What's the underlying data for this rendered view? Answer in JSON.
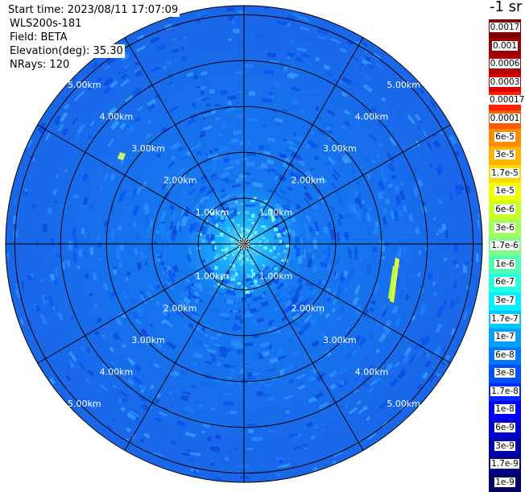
{
  "info": {
    "start_time": "Start time: 2023/08/11 17:07:09",
    "device": "WLS200s-181",
    "field": "Field: BETA",
    "elevation": "Elevation(deg): 35.30",
    "nrays": "NRays: 120"
  },
  "colorbar": {
    "title": "-1 sr",
    "labels": [
      "0.0017",
      "0.001",
      "0.0006",
      "0.0003",
      "0.00017",
      "0.0001",
      "6e-5",
      "3e-5",
      "1.7e-5",
      "1e-5",
      "6e-6",
      "3e-6",
      "1.7e-6",
      "1e-6",
      "6e-7",
      "3e-7",
      "1.7e-7",
      "1e-7",
      "6e-8",
      "3e-8",
      "1.7e-8",
      "1e-8",
      "6e-9",
      "3e-9",
      "1.7e-9",
      "1e-9"
    ],
    "colors": [
      "#800000",
      "#9a0000",
      "#b50000",
      "#d40000",
      "#ff2000",
      "#ff5a00",
      "#ff8c00",
      "#ffb400",
      "#ffdc00",
      "#f0ff00",
      "#c8ff28",
      "#a0ff5a",
      "#78ff8c",
      "#50ffb4",
      "#28ffdc",
      "#00f0ff",
      "#00c8ff",
      "#00a0ff",
      "#0078ff",
      "#0050ff",
      "#0028ff",
      "#0000ff",
      "#0000d2",
      "#0000aa",
      "#000082",
      "#000064"
    ]
  },
  "chart_data": {
    "type": "polar",
    "field": "BETA",
    "elevation_deg": 35.3,
    "n_rays": 120,
    "range_rings_km": [
      1,
      2,
      3,
      4,
      5
    ],
    "max_range_km": 5.2,
    "spokes_every_deg": 30,
    "ring_labels": [
      "1.00km",
      "2.00km",
      "3.00km",
      "4.00km",
      "5.00km"
    ]
  }
}
